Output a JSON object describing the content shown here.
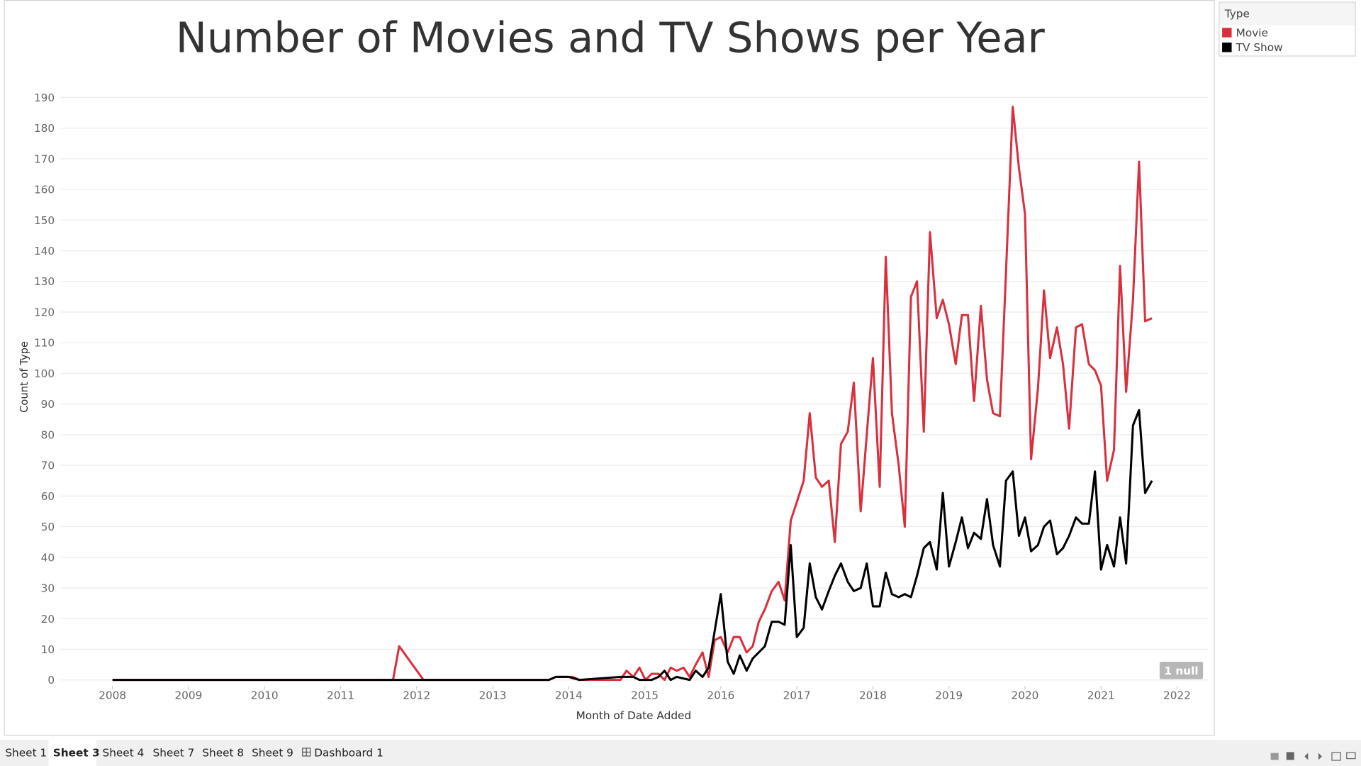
{
  "chart_data": {
    "type": "line",
    "title": "Number of Movies and TV Shows per Year",
    "x_label": "Month of Date Added",
    "y_label": "Count of Type",
    "legend_title": "Type",
    "legend_position": "top-right",
    "grid": true,
    "xlim": [
      2007.32,
      2022.41
    ],
    "xticks": [
      2008,
      2009,
      2010,
      2011,
      2012,
      2013,
      2014,
      2015,
      2016,
      2017,
      2018,
      2019,
      2020,
      2021,
      2022
    ],
    "ylim": [
      -2,
      196
    ],
    "yticks": [
      0,
      10,
      20,
      30,
      40,
      50,
      60,
      70,
      80,
      90,
      100,
      110,
      120,
      130,
      140,
      150,
      160,
      170,
      180,
      190
    ],
    "null_indicator": "1 null",
    "series": [
      {
        "name": "Movie",
        "color": "#d9303e",
        "x": [
          2008.0,
          2011.69,
          2011.77,
          2012.09,
          2013.74,
          2013.83,
          2014.05,
          2014.14,
          2014.68,
          2014.76,
          2014.85,
          2014.93,
          2015.01,
          2015.09,
          2015.18,
          2015.26,
          2015.34,
          2015.42,
          2015.51,
          2015.59,
          2015.67,
          2015.76,
          2015.84,
          2015.92,
          2016.0,
          2016.09,
          2016.17,
          2016.25,
          2016.34,
          2016.42,
          2016.5,
          2016.58,
          2016.67,
          2016.76,
          2016.84,
          2016.92,
          2017.0,
          2017.09,
          2017.17,
          2017.25,
          2017.33,
          2017.42,
          2017.5,
          2017.58,
          2017.67,
          2017.75,
          2017.84,
          2017.92,
          2018.0,
          2018.09,
          2018.17,
          2018.25,
          2018.34,
          2018.42,
          2018.5,
          2018.58,
          2018.67,
          2018.75,
          2018.84,
          2018.92,
          2019.0,
          2019.09,
          2019.17,
          2019.25,
          2019.33,
          2019.42,
          2019.5,
          2019.58,
          2019.67,
          2019.75,
          2019.84,
          2019.92,
          2020.0,
          2020.08,
          2020.17,
          2020.25,
          2020.33,
          2020.42,
          2020.5,
          2020.58,
          2020.67,
          2020.75,
          2020.84,
          2020.92,
          2021.0,
          2021.08,
          2021.17,
          2021.25,
          2021.33,
          2021.42,
          2021.5,
          2021.58,
          2021.67
        ],
        "values": [
          0,
          0,
          11,
          0,
          0,
          1,
          1,
          0,
          0,
          3,
          1,
          4,
          0,
          2,
          2,
          0,
          4,
          3,
          4,
          1,
          5,
          9,
          1,
          13,
          14,
          9,
          14,
          14,
          9,
          11,
          19,
          23,
          29,
          32,
          26,
          52,
          58,
          65,
          87,
          66,
          63,
          65,
          45,
          77,
          81,
          97,
          55,
          80,
          105,
          63,
          138,
          87,
          70,
          50,
          125,
          130,
          81,
          146,
          118,
          124,
          116,
          103,
          119,
          119,
          91,
          122,
          98,
          87,
          86,
          133,
          187,
          167,
          152,
          72,
          95,
          127,
          105,
          115,
          103,
          82,
          115,
          116,
          103,
          101,
          96,
          65,
          75,
          135,
          94,
          124,
          169,
          117,
          118
        ]
      },
      {
        "name": "TV Show",
        "color": "#000000",
        "x": [
          2008.0,
          2013.74,
          2013.83,
          2014.0,
          2014.14,
          2014.68,
          2014.85,
          2014.93,
          2015.09,
          2015.18,
          2015.26,
          2015.34,
          2015.42,
          2015.59,
          2015.67,
          2015.76,
          2015.84,
          2016.0,
          2016.09,
          2016.17,
          2016.25,
          2016.34,
          2016.42,
          2016.5,
          2016.58,
          2016.67,
          2016.76,
          2016.84,
          2016.92,
          2017.0,
          2017.09,
          2017.17,
          2017.25,
          2017.33,
          2017.42,
          2017.5,
          2017.58,
          2017.67,
          2017.75,
          2017.84,
          2017.92,
          2018.0,
          2018.09,
          2018.17,
          2018.25,
          2018.34,
          2018.42,
          2018.5,
          2018.58,
          2018.67,
          2018.75,
          2018.84,
          2018.92,
          2019.0,
          2019.09,
          2019.17,
          2019.25,
          2019.33,
          2019.42,
          2019.5,
          2019.58,
          2019.67,
          2019.75,
          2019.84,
          2019.92,
          2020.0,
          2020.08,
          2020.17,
          2020.25,
          2020.33,
          2020.42,
          2020.5,
          2020.58,
          2020.67,
          2020.75,
          2020.84,
          2020.92,
          2021.0,
          2021.08,
          2021.17,
          2021.25,
          2021.33,
          2021.42,
          2021.5,
          2021.58,
          2021.67
        ],
        "values": [
          0,
          0,
          1,
          1,
          0,
          1,
          1,
          0,
          0,
          1,
          3,
          0,
          1,
          0,
          3,
          1,
          4,
          28,
          6,
          2,
          8,
          3,
          7,
          9,
          11,
          19,
          19,
          18,
          44,
          14,
          17,
          38,
          27,
          23,
          29,
          34,
          38,
          32,
          29,
          30,
          38,
          24,
          24,
          35,
          28,
          27,
          28,
          27,
          34,
          43,
          45,
          36,
          61,
          37,
          45,
          53,
          43,
          48,
          46,
          59,
          44,
          37,
          65,
          68,
          47,
          53,
          42,
          44,
          50,
          52,
          41,
          43,
          47,
          53,
          51,
          51,
          68,
          36,
          44,
          37,
          53,
          38,
          83,
          88,
          61,
          65
        ]
      }
    ]
  },
  "tabs": [
    "Sheet 1",
    "Sheet 3",
    "Sheet 4",
    "Sheet 7",
    "Sheet 8",
    "Sheet 9",
    "Dashboard 1"
  ]
}
